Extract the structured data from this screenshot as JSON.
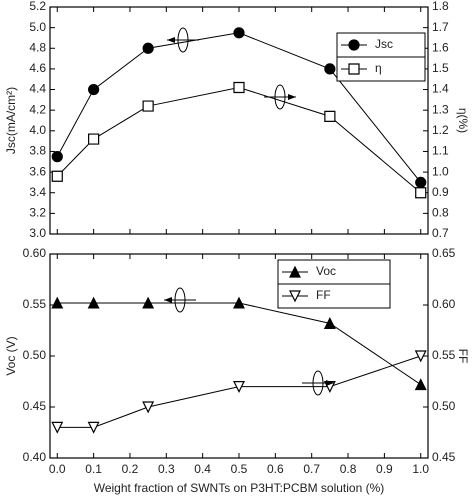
{
  "chart_data": [
    {
      "type": "line",
      "ylabel": "Jsc(mA/cm²)",
      "y2label": "η(%)",
      "x": [
        0,
        0.1,
        0.25,
        0.5,
        0.75,
        1.0
      ],
      "xlim": [
        -0.02,
        1.02
      ],
      "xticks": [
        0,
        0.1,
        0.2,
        0.3,
        0.4,
        0.5,
        0.6,
        0.7,
        0.8,
        0.9,
        1.0
      ],
      "xticklabels": false,
      "ylim": [
        3.0,
        5.2
      ],
      "yticks": [
        {
          "value": 3.0,
          "label": "3.0"
        },
        3.2,
        3.4,
        3.6,
        3.8,
        {
          "value": 4.0,
          "label": "4.0"
        },
        4.2,
        4.4,
        4.6,
        4.8,
        {
          "value": 5.0,
          "label": "5.0"
        },
        5.2
      ],
      "y2lim": [
        0.7,
        1.8
      ],
      "y2ticks": [
        0.7,
        0.8,
        0.9,
        {
          "value": 1.0,
          "label": "1.0"
        },
        1.1,
        1.2,
        1.3,
        1.4,
        1.5,
        1.6,
        1.7,
        1.8
      ],
      "legend": "upper right",
      "series": [
        {
          "name": "Jsc",
          "color": "#000000",
          "marker": "circle-filled",
          "values": [
            3.75,
            4.4,
            4.8,
            4.95,
            4.6,
            3.5
          ]
        },
        {
          "name": "η",
          "color": "#000000",
          "marker": "square-open",
          "axis": "y2",
          "values": [
            0.98,
            1.16,
            1.32,
            1.41,
            1.27,
            0.9
          ]
        }
      ]
    },
    {
      "type": "line",
      "ylabel": "Voc (V)",
      "y2label": "FF",
      "xlabel": "Weight fraction of SWNTs on P3HT:PCBM solution (%)",
      "x": [
        0,
        0.1,
        0.25,
        0.5,
        0.75,
        1.0
      ],
      "xlim": [
        -0.02,
        1.02
      ],
      "xticks": [
        {
          "value": 0,
          "label": "0.0"
        },
        0.1,
        0.2,
        0.3,
        0.4,
        0.5,
        0.6,
        0.7,
        0.8,
        0.9,
        {
          "value": 1.0,
          "label": "1.0"
        }
      ],
      "xticklabels": true,
      "ylim": [
        0.4,
        0.6
      ],
      "yticks": [
        {
          "value": 0.4,
          "label": "0.40"
        },
        0.45,
        {
          "value": 0.5,
          "label": "0.50"
        },
        0.55,
        {
          "value": 0.6,
          "label": "0.60"
        }
      ],
      "y2lim": [
        0.45,
        0.65
      ],
      "y2ticks": [
        0.45,
        {
          "value": 0.5,
          "label": "0.50"
        },
        0.55,
        {
          "value": 0.6,
          "label": "0.60"
        },
        0.65
      ],
      "legend": "upper right",
      "series": [
        {
          "name": "Voc",
          "color": "#000000",
          "marker": "triangle-filled",
          "values": [
            0.552,
            0.552,
            0.552,
            0.552,
            0.532,
            0.472
          ]
        },
        {
          "name": "FF",
          "color": "#000000",
          "marker": "triangle-down-open",
          "axis": "y2",
          "values": [
            0.48,
            0.48,
            0.5,
            0.52,
            0.52,
            0.55
          ]
        }
      ]
    }
  ]
}
